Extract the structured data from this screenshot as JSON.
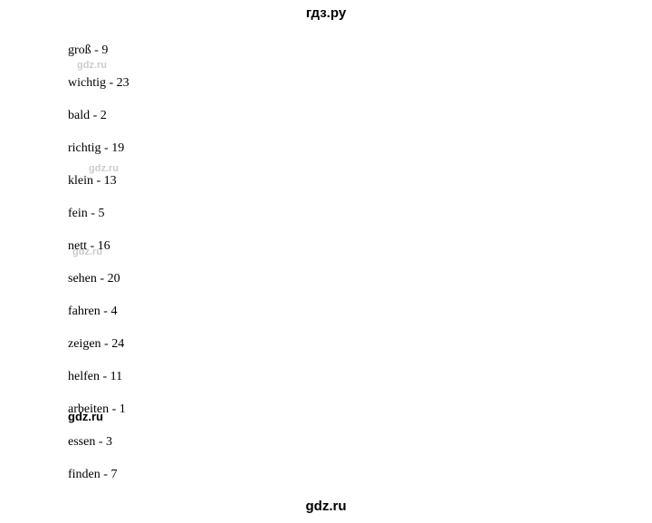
{
  "header": {
    "title": "гдз.ру"
  },
  "footer": {
    "title": "gdz.ru"
  },
  "watermarks": {
    "wm1": "gdz.ru",
    "wm2": "gdz.ru",
    "wm3": "gdz.ru",
    "wm4": "gdz.ru"
  },
  "list": {
    "items": [
      {
        "word": "groß",
        "num": "9"
      },
      {
        "word": "wichtig",
        "num": "23"
      },
      {
        "word": "bald",
        "num": "2"
      },
      {
        "word": "richtig",
        "num": "19"
      },
      {
        "word": "klein",
        "num": "13"
      },
      {
        "word": "fein",
        "num": "5"
      },
      {
        "word": "nett",
        "num": "16"
      },
      {
        "word": "sehen",
        "num": "20"
      },
      {
        "word": "fahren",
        "num": "4"
      },
      {
        "word": "zeigen",
        "num": "24"
      },
      {
        "word": "helfen",
        "num": "11"
      },
      {
        "word": "arbeiten",
        "num": "1"
      },
      {
        "word": "essen",
        "num": "3"
      },
      {
        "word": "finden",
        "num": "7"
      }
    ]
  },
  "style": {
    "background_color": "#ffffff",
    "text_color": "#000000",
    "watermark_color": "#cccccc",
    "header_fontsize": 15,
    "item_fontsize": 14,
    "item_spacing": 20
  }
}
